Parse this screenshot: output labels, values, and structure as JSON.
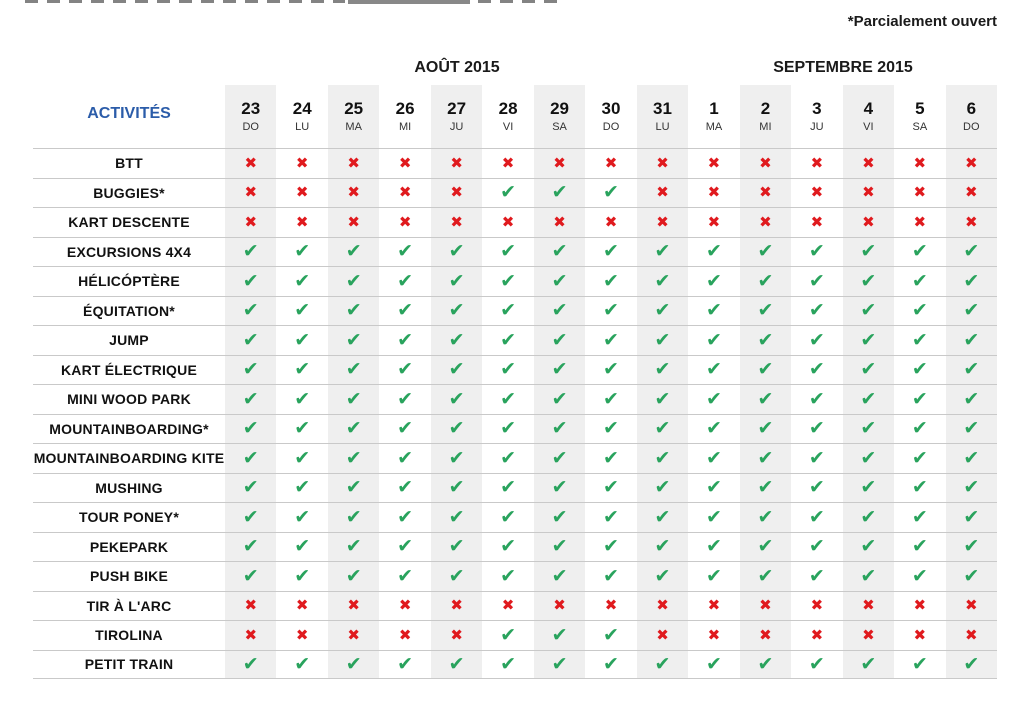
{
  "note": "*Parcialement ouvert",
  "table": {
    "activities_header": "ACTIVITÉS",
    "months": [
      {
        "label": "AOÛT 2015",
        "col_start": 0,
        "col_span": 9
      },
      {
        "label": "SEPTEMBRE 2015",
        "col_start": 9,
        "col_span": 6
      }
    ],
    "columns": [
      {
        "day": "23",
        "weekday": "DO",
        "shaded": true
      },
      {
        "day": "24",
        "weekday": "LU",
        "shaded": false
      },
      {
        "day": "25",
        "weekday": "MA",
        "shaded": true
      },
      {
        "day": "26",
        "weekday": "MI",
        "shaded": false
      },
      {
        "day": "27",
        "weekday": "JU",
        "shaded": true
      },
      {
        "day": "28",
        "weekday": "VI",
        "shaded": false
      },
      {
        "day": "29",
        "weekday": "SA",
        "shaded": true
      },
      {
        "day": "30",
        "weekday": "DO",
        "shaded": false
      },
      {
        "day": "31",
        "weekday": "LU",
        "shaded": true
      },
      {
        "day": "1",
        "weekday": "MA",
        "shaded": false
      },
      {
        "day": "2",
        "weekday": "MI",
        "shaded": true
      },
      {
        "day": "3",
        "weekday": "JU",
        "shaded": false
      },
      {
        "day": "4",
        "weekday": "VI",
        "shaded": true
      },
      {
        "day": "5",
        "weekday": "SA",
        "shaded": false
      },
      {
        "day": "6",
        "weekday": "DO",
        "shaded": true
      }
    ],
    "rows": [
      {
        "activity": "BTT",
        "marks": "XXXXXXXXXXXXXXX"
      },
      {
        "activity": "BUGGIES*",
        "marks": "XXXXXCCCXXXXXXX"
      },
      {
        "activity": "KART DESCENTE",
        "marks": "XXXXXXXXXXXXXXX"
      },
      {
        "activity": "EXCURSIONS 4X4",
        "marks": "CCCCCCCCCCCCCCC"
      },
      {
        "activity": "HÉLICÓPTÈRE",
        "marks": "CCCCCCCCCCCCCCC"
      },
      {
        "activity": "ÉQUITATION*",
        "marks": "CCCCCCCCCCCCCCC"
      },
      {
        "activity": "JUMP",
        "marks": "CCCCCCCCCCCCCCC"
      },
      {
        "activity": "KART ÉLECTRIQUE",
        "marks": "CCCCCCCCCCCCCCC"
      },
      {
        "activity": "MINI WOOD PARK",
        "marks": "CCCCCCCCCCCCCCC"
      },
      {
        "activity": "MOUNTAINBOARDING*",
        "marks": "CCCCCCCCCCCCCCC"
      },
      {
        "activity": "MOUNTAINBOARDING KITE",
        "marks": "CCCCCCCCCCCCCCC"
      },
      {
        "activity": "MUSHING",
        "marks": "CCCCCCCCCCCCCCC"
      },
      {
        "activity": "TOUR PONEY*",
        "marks": "CCCCCCCCCCCCCCC"
      },
      {
        "activity": "PEKEPARK",
        "marks": "CCCCCCCCCCCCCCC"
      },
      {
        "activity": "PUSH BIKE",
        "marks": "CCCCCCCCCCCCCCC"
      },
      {
        "activity": "TIR À L'ARC",
        "marks": "XXXXXXXXXXXXXXX"
      },
      {
        "activity": "TIROLINA",
        "marks": "XXXXXCCCXXXXXXX"
      },
      {
        "activity": "PETIT TRAIN",
        "marks": "CCCCCCCCCCCCCCC"
      }
    ],
    "legend": {
      "C": "open (green check)",
      "X": "closed (red cross)"
    }
  },
  "icons": {
    "check": "✔",
    "cross": "✖"
  },
  "colors": {
    "check_green": "#29a35d",
    "cross_red": "#e01a1e",
    "stripe_gray": "#efefef",
    "line_gray": "#c9c9c9",
    "header_blue": "#2b5ca9"
  },
  "chart_data": {
    "type": "table",
    "note": "*Parcialement ouvert",
    "column_groups": [
      "AOÛT 2015",
      "SEPTEMBRE 2015"
    ],
    "columns": [
      "23 DO",
      "24 LU",
      "25 MA",
      "26 MI",
      "27 JU",
      "28 VI",
      "29 SA",
      "30 DO",
      "31 LU",
      "1 MA",
      "2 MI",
      "3 JU",
      "4 VI",
      "5 SA",
      "6 DO"
    ],
    "legend": {
      "C": "open (green check)",
      "X": "closed (red cross)"
    },
    "rows": [
      {
        "activity": "BTT",
        "availability": "XXXXXXXXXXXXXXX"
      },
      {
        "activity": "BUGGIES*",
        "availability": "XXXXXCCCXXXXXXX"
      },
      {
        "activity": "KART DESCENTE",
        "availability": "XXXXXXXXXXXXXXX"
      },
      {
        "activity": "EXCURSIONS 4X4",
        "availability": "CCCCCCCCCCCCCCC"
      },
      {
        "activity": "HÉLICÓPTÈRE",
        "availability": "CCCCCCCCCCCCCCC"
      },
      {
        "activity": "ÉQUITATION*",
        "availability": "CCCCCCCCCCCCCCC"
      },
      {
        "activity": "JUMP",
        "availability": "CCCCCCCCCCCCCCC"
      },
      {
        "activity": "KART ÉLECTRIQUE",
        "availability": "CCCCCCCCCCCCCCC"
      },
      {
        "activity": "MINI WOOD PARK",
        "availability": "CCCCCCCCCCCCCCC"
      },
      {
        "activity": "MOUNTAINBOARDING*",
        "availability": "CCCCCCCCCCCCCCC"
      },
      {
        "activity": "MOUNTAINBOARDING KITE",
        "availability": "CCCCCCCCCCCCCCC"
      },
      {
        "activity": "MUSHING",
        "availability": "CCCCCCCCCCCCCCC"
      },
      {
        "activity": "TOUR PONEY*",
        "availability": "CCCCCCCCCCCCCCC"
      },
      {
        "activity": "PEKEPARK",
        "availability": "CCCCCCCCCCCCCCC"
      },
      {
        "activity": "PUSH BIKE",
        "availability": "CCCCCCCCCCCCCCC"
      },
      {
        "activity": "TIR À L'ARC",
        "availability": "XXXXXXXXXXXXXXX"
      },
      {
        "activity": "TIROLINA",
        "availability": "XXXXXCCCXXXXXXX"
      },
      {
        "activity": "PETIT TRAIN",
        "availability": "CCCCCCCCCCCCCCC"
      }
    ]
  }
}
